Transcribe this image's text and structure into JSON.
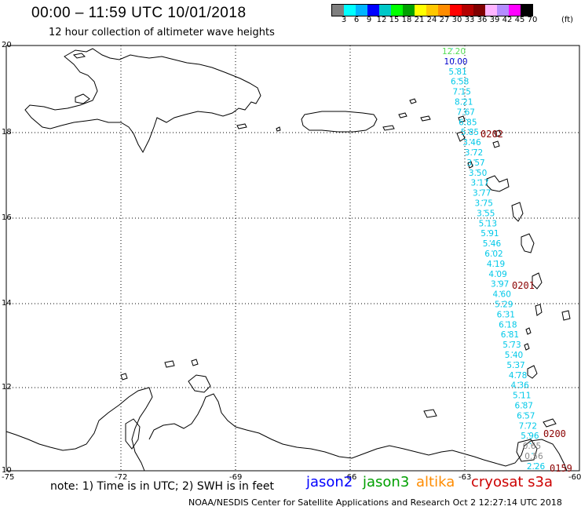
{
  "title": "00:00 – 11:59 UTC 10/01/2018",
  "subtitle": "12 hour collection of altimeter wave heights",
  "colorbar": {
    "colors": [
      "#7f7f7f",
      "#00ffff",
      "#00b4ff",
      "#0000ff",
      "#00c8c8",
      "#00ff00",
      "#00a000",
      "#ffff00",
      "#ffc800",
      "#ff8c00",
      "#ff0000",
      "#b40000",
      "#800000",
      "#ffb4ff",
      "#b48cff",
      "#ff00ff",
      "#000000"
    ],
    "labels": [
      "3",
      "6",
      "9",
      "12",
      "15",
      "18",
      "21",
      "24",
      "27",
      "30",
      "33",
      "36",
      "39",
      "42",
      "45",
      "70"
    ],
    "unit": "(ft)"
  },
  "latitude_labels": [
    "20",
    "18",
    "16",
    "14",
    "12",
    "10"
  ],
  "longitude_labels": [
    "-75",
    "-72",
    "-69",
    "-66",
    "-63",
    "-60"
  ],
  "wave_heights": [
    {
      "v": "12.20",
      "c": "#55dd55"
    },
    {
      "v": "10.00",
      "c": "#0000cc"
    },
    {
      "v": "5.81",
      "c": "#00c8e8"
    },
    {
      "v": "6.58",
      "c": "#00c8e8"
    },
    {
      "v": "7.15",
      "c": "#00c8e8"
    },
    {
      "v": "8.21",
      "c": "#00c8e8"
    },
    {
      "v": "7.67",
      "c": "#00c8e8"
    },
    {
      "v": "6.85",
      "c": "#00c8e8"
    },
    {
      "v": "5.85",
      "c": "#00c8e8"
    },
    {
      "v": "3.46",
      "c": "#00c8e8"
    },
    {
      "v": "3.72",
      "c": "#00c8e8"
    },
    {
      "v": "3.57",
      "c": "#00c8e8"
    },
    {
      "v": "3.50",
      "c": "#00c8e8"
    },
    {
      "v": "3.17",
      "c": "#00c8e8"
    },
    {
      "v": "3.77",
      "c": "#00c8e8"
    },
    {
      "v": "3.75",
      "c": "#00c8e8"
    },
    {
      "v": "3.55",
      "c": "#00c8e8"
    },
    {
      "v": "5.13",
      "c": "#00c8e8"
    },
    {
      "v": "5.91",
      "c": "#00c8e8"
    },
    {
      "v": "5.46",
      "c": "#00c8e8"
    },
    {
      "v": "6.02",
      "c": "#00c8e8"
    },
    {
      "v": "4.19",
      "c": "#00c8e8"
    },
    {
      "v": "4.09",
      "c": "#00c8e8"
    },
    {
      "v": "3.97",
      "c": "#00c8e8"
    },
    {
      "v": "4.60",
      "c": "#00c8e8"
    },
    {
      "v": "5.29",
      "c": "#00c8e8"
    },
    {
      "v": "6.31",
      "c": "#00c8e8"
    },
    {
      "v": "6.18",
      "c": "#00c8e8"
    },
    {
      "v": "6.81",
      "c": "#00c8e8"
    },
    {
      "v": "5.73",
      "c": "#00c8e8"
    },
    {
      "v": "5.40",
      "c": "#00c8e8"
    },
    {
      "v": "5.37",
      "c": "#00c8e8"
    },
    {
      "v": "4.78",
      "c": "#00c8e8"
    },
    {
      "v": "4.36",
      "c": "#00c8e8"
    },
    {
      "v": "5.11",
      "c": "#00c8e8"
    },
    {
      "v": "6.87",
      "c": "#00c8e8"
    },
    {
      "v": "6.57",
      "c": "#00c8e8"
    },
    {
      "v": "7.72",
      "c": "#00c8e8"
    },
    {
      "v": "5.96",
      "c": "#00c8e8"
    },
    {
      "v": "0.65",
      "c": "#888888"
    },
    {
      "v": "0.56",
      "c": "#888888"
    },
    {
      "v": "2.26",
      "c": "#00c8e8"
    }
  ],
  "time_labels": [
    "0202",
    "0201",
    "0200",
    "0159"
  ],
  "note": "note: 1) Time is in UTC; 2) SWH is in feet",
  "satellites": [
    {
      "name": "jason2",
      "color": "#0000ff"
    },
    {
      "name": "jason3",
      "color": "#00a000"
    },
    {
      "name": "altika",
      "color": "#ff8c00"
    },
    {
      "name": "cryosat s3a",
      "color": "#cc0000"
    }
  ],
  "credit": "NOAA/NESDIS Center for Satellite Applications and Research    Oct  2 12:27:14 UTC 2018"
}
